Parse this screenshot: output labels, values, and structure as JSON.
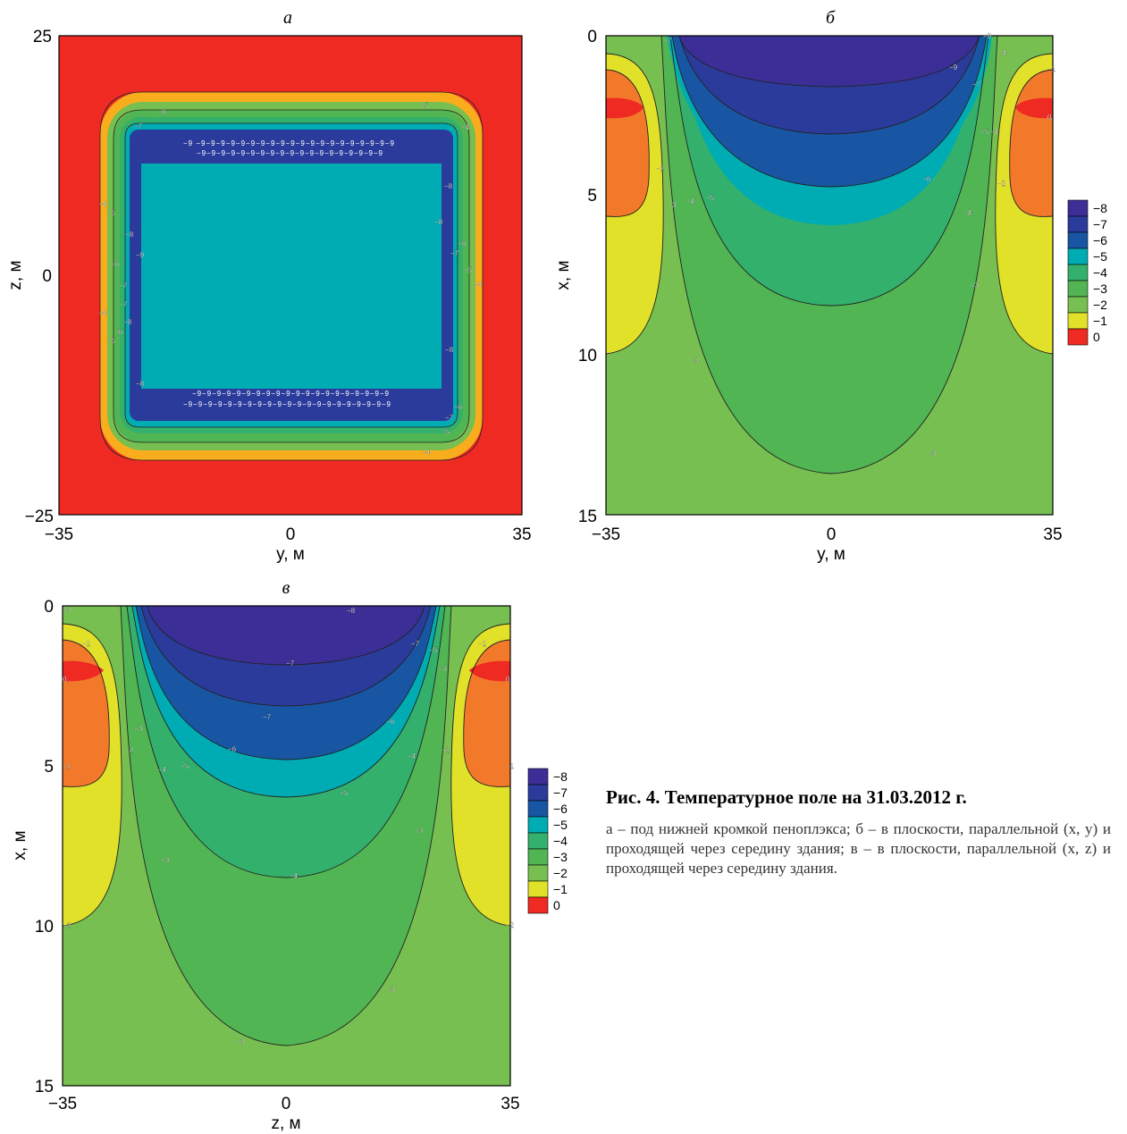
{
  "caption": {
    "title": "Рис. 4. Температурное поле на 31.03.2012 г.",
    "text": "а – под нижней кромкой пеноплэкса; б – в плоскости, параллельной (x, y) и проходящей через середину здания; в – в плоскости, параллельной (x, z) и проходящей через середину здания."
  },
  "colors": {
    "-8": "#3b2f97",
    "-7": "#2b3b9c",
    "-6": "#1856a4",
    "-5": "#00acb4",
    "-4": "#33b06c",
    "-3": "#52b553",
    "-2": "#76bf50",
    "-1": "#e2e12a",
    "0": "#f2792a",
    "1": "#ee2a23",
    "ring_a": "#f9ad1d"
  },
  "chart_data": [
    {
      "id": "a",
      "type": "heatmap",
      "title": "а",
      "xlabel": "y, м",
      "ylabel": "z, м",
      "xlim": [
        -35,
        35
      ],
      "ylim": [
        -25,
        25
      ],
      "xticks": [
        "−35",
        "0",
        "35"
      ],
      "yticks": [
        "25",
        "0",
        "−25"
      ],
      "description_levels": [
        0,
        -1,
        -2,
        -3,
        -4,
        -5,
        -8
      ],
      "contour_labels": [
        "−8",
        "−7",
        "−6",
        "−5",
        "−4",
        "−9"
      ]
    },
    {
      "id": "b",
      "type": "heatmap",
      "title": "б",
      "xlabel": "y, м",
      "ylabel": "x, м",
      "xlim": [
        -35,
        35
      ],
      "ylim": [
        15,
        0
      ],
      "xticks": [
        "−35",
        "0",
        "35"
      ],
      "yticks": [
        "0",
        "5",
        "10",
        "15"
      ],
      "contour_labels": [
        "−9",
        "−8",
        "−7",
        "−6",
        "−5",
        "−4",
        "−3",
        "−2",
        "−1",
        "0"
      ],
      "legend": [
        "−8",
        "−7",
        "−6",
        "−5",
        "−4",
        "−3",
        "−2",
        "−1",
        "0"
      ]
    },
    {
      "id": "c",
      "type": "heatmap",
      "title": "в",
      "xlabel": "z, м",
      "ylabel": "x, м",
      "xlim": [
        -35,
        35
      ],
      "ylim": [
        15,
        0
      ],
      "xticks": [
        "−35",
        "0",
        "35"
      ],
      "yticks": [
        "0",
        "5",
        "10",
        "15"
      ],
      "contour_labels": [
        "−8",
        "−7",
        "−6",
        "−5",
        "−4",
        "−3",
        "−2",
        "−1",
        "0"
      ],
      "legend": [
        "−8",
        "−7",
        "−6",
        "−5",
        "−4",
        "−3",
        "−2",
        "−1",
        "0"
      ]
    }
  ]
}
